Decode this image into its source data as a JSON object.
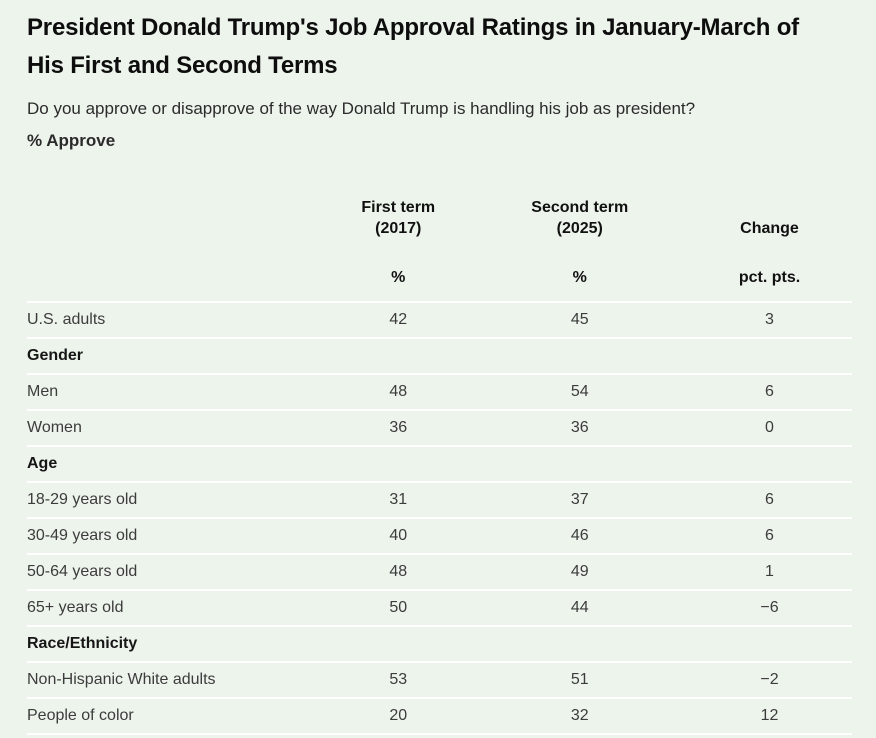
{
  "page": {
    "title": "President Donald Trump's Job Approval Ratings in January-March of His First and Second Terms",
    "question": "Do you approve or disapprove of the way Donald Trump is handling his job as president?",
    "metric_label": "% Approve",
    "colors": {
      "background": "#edf4ec",
      "title_text": "#0d0d0d",
      "body_text": "#3c3c3c",
      "row_divider": "#ffffff"
    }
  },
  "table": {
    "header": {
      "first_term": "First term\n(2017)",
      "second_term": "Second term\n(2025)",
      "change": "Change",
      "first_term_unit": "%",
      "second_term_unit": "%",
      "change_unit": "pct. pts."
    },
    "rows": [
      {
        "type": "data",
        "label": "U.S. adults",
        "first": "42",
        "second": "45",
        "change": "3"
      },
      {
        "type": "group",
        "label": "Gender"
      },
      {
        "type": "data",
        "label": "Men",
        "first": "48",
        "second": "54",
        "change": "6"
      },
      {
        "type": "data",
        "label": "Women",
        "first": "36",
        "second": "36",
        "change": "0"
      },
      {
        "type": "group",
        "label": "Age"
      },
      {
        "type": "data",
        "label": "18-29 years old",
        "first": "31",
        "second": "37",
        "change": "6"
      },
      {
        "type": "data",
        "label": "30-49 years old",
        "first": "40",
        "second": "46",
        "change": "6"
      },
      {
        "type": "data",
        "label": "50-64 years old",
        "first": "48",
        "second": "49",
        "change": "1"
      },
      {
        "type": "data",
        "label": "65+ years old",
        "first": "50",
        "second": "44",
        "change": "−6"
      },
      {
        "type": "group",
        "label": "Race/Ethnicity"
      },
      {
        "type": "data",
        "label": "Non-Hispanic White adults",
        "first": "53",
        "second": "51",
        "change": "−2"
      },
      {
        "type": "data",
        "label": "People of color",
        "first": "20",
        "second": "32",
        "change": "12"
      }
    ]
  },
  "chart_data": {
    "type": "table",
    "title": "President Donald Trump's Job Approval Ratings in January-March of His First and Second Terms",
    "subtitle": "Do you approve or disapprove of the way Donald Trump is handling his job as president?",
    "metric": "% Approve",
    "columns": [
      "First term (2017) %",
      "Second term (2025) %",
      "Change pct. pts."
    ],
    "groups": [
      {
        "name": "",
        "rows": [
          {
            "label": "U.S. adults",
            "first_term_2017": 42,
            "second_term_2025": 45,
            "change": 3
          }
        ]
      },
      {
        "name": "Gender",
        "rows": [
          {
            "label": "Men",
            "first_term_2017": 48,
            "second_term_2025": 54,
            "change": 6
          },
          {
            "label": "Women",
            "first_term_2017": 36,
            "second_term_2025": 36,
            "change": 0
          }
        ]
      },
      {
        "name": "Age",
        "rows": [
          {
            "label": "18-29 years old",
            "first_term_2017": 31,
            "second_term_2025": 37,
            "change": 6
          },
          {
            "label": "30-49 years old",
            "first_term_2017": 40,
            "second_term_2025": 46,
            "change": 6
          },
          {
            "label": "50-64 years old",
            "first_term_2017": 48,
            "second_term_2025": 49,
            "change": 1
          },
          {
            "label": "65+ years old",
            "first_term_2017": 50,
            "second_term_2025": 44,
            "change": -6
          }
        ]
      },
      {
        "name": "Race/Ethnicity",
        "rows": [
          {
            "label": "Non-Hispanic White adults",
            "first_term_2017": 53,
            "second_term_2025": 51,
            "change": -2
          },
          {
            "label": "People of color",
            "first_term_2017": 20,
            "second_term_2025": 32,
            "change": 12
          }
        ]
      }
    ]
  }
}
